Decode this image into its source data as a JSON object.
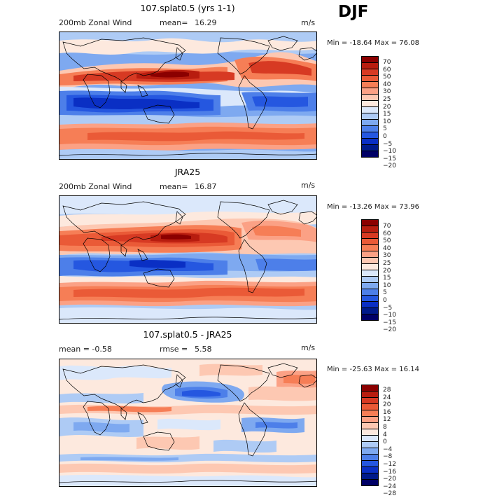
{
  "season": "DJF",
  "panels": [
    {
      "title": "107.splat0.5 (yrs 1-1)",
      "left_label": "200mb Zonal Wind",
      "stat_label": "mean=",
      "stat_value": "16.29",
      "unit": "m/s",
      "min_max": "Min = -18.64 Max =  76.08",
      "levels": [
        "70",
        "60",
        "50",
        "40",
        "30",
        "25",
        "20",
        "15",
        "10",
        "5",
        "0",
        "−5",
        "−10",
        "−15",
        "−20"
      ],
      "colors": [
        "#8b0000",
        "#b81d0f",
        "#d73a23",
        "#ea5a37",
        "#f67e56",
        "#fba185",
        "#fdc8b2",
        "#fde9de",
        "#dbe8fb",
        "#aecbf5",
        "#7ea9f0",
        "#4d7fe9",
        "#2557e0",
        "#0a2fc4",
        "#001a8a",
        "#000066"
      ]
    },
    {
      "title": "JRA25",
      "left_label": "200mb Zonal Wind",
      "stat_label": "mean=",
      "stat_value": "16.87",
      "unit": "m/s",
      "min_max": "Min = -13.26 Max =  73.96",
      "levels": [
        "70",
        "60",
        "50",
        "40",
        "30",
        "25",
        "20",
        "15",
        "10",
        "5",
        "0",
        "−5",
        "−10",
        "−15",
        "−20"
      ],
      "colors": [
        "#8b0000",
        "#b81d0f",
        "#d73a23",
        "#ea5a37",
        "#f67e56",
        "#fba185",
        "#fdc8b2",
        "#fde9de",
        "#dbe8fb",
        "#aecbf5",
        "#7ea9f0",
        "#4d7fe9",
        "#2557e0",
        "#0a2fc4",
        "#001a8a",
        "#000066"
      ]
    },
    {
      "title": "107.splat0.5 - JRA25",
      "left_label": "mean =   -0.58",
      "stat_label": "rmse =",
      "stat_value": "5.58",
      "unit": "m/s",
      "min_max": "Min = -25.63 Max =  16.14",
      "levels": [
        "28",
        "24",
        "20",
        "16",
        "12",
        "8",
        "4",
        "0",
        "−4",
        "−8",
        "−12",
        "−16",
        "−20",
        "−24",
        "−28"
      ],
      "colors": [
        "#8b0000",
        "#b81d0f",
        "#d73a23",
        "#ea5a37",
        "#f67e56",
        "#fba185",
        "#fdc8b2",
        "#fde9de",
        "#dbe8fb",
        "#aecbf5",
        "#7ea9f0",
        "#4d7fe9",
        "#2557e0",
        "#0a2fc4",
        "#001a8a",
        "#000066"
      ]
    }
  ]
}
